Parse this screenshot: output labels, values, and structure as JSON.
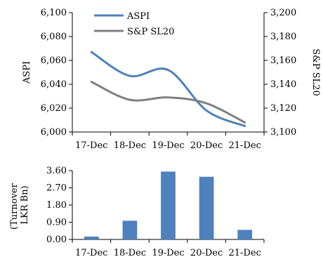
{
  "chart_data": [
    {
      "type": "line",
      "categories": [
        "17-Dec",
        "18-Dec",
        "19-Dec",
        "20-Dec",
        "21-Dec"
      ],
      "series": [
        {
          "name": "ASPI",
          "axis": "left",
          "color": "#4f81bd",
          "values": [
            6067,
            6047,
            6052,
            6018,
            6005
          ]
        },
        {
          "name": "S&P SL20",
          "axis": "right",
          "color": "#808080",
          "values": [
            3142,
            3127,
            3129,
            3124,
            3108
          ]
        }
      ],
      "ylabel_left": "ASPI",
      "ylabel_right": "S&P SL20",
      "ylim_left": [
        6000,
        6100
      ],
      "ylim_right": [
        3100,
        3200
      ],
      "yticks_left": [
        "6,000",
        "6,020",
        "6,040",
        "6,060",
        "6,080",
        "6,100"
      ],
      "yticks_right": [
        "3,100",
        "3,120",
        "3,140",
        "3,160",
        "3,180",
        "3,200"
      ],
      "smooth": true,
      "grid": false,
      "legend": "top-left"
    },
    {
      "type": "bar",
      "categories": [
        "17-Dec",
        "18-Dec",
        "19-Dec",
        "20-Dec",
        "21-Dec"
      ],
      "values": [
        0.15,
        0.98,
        3.55,
        3.28,
        0.5
      ],
      "color": "#4f81bd",
      "ylabel": "(Turnover LKR Bn)",
      "ylabel_lines": [
        "(Turnover",
        "LKR Bn)"
      ],
      "ylim": [
        0,
        3.6
      ],
      "yticks": [
        "0.00",
        "0.90",
        "1.80",
        "2.70",
        "3.60"
      ],
      "grid": false
    }
  ]
}
